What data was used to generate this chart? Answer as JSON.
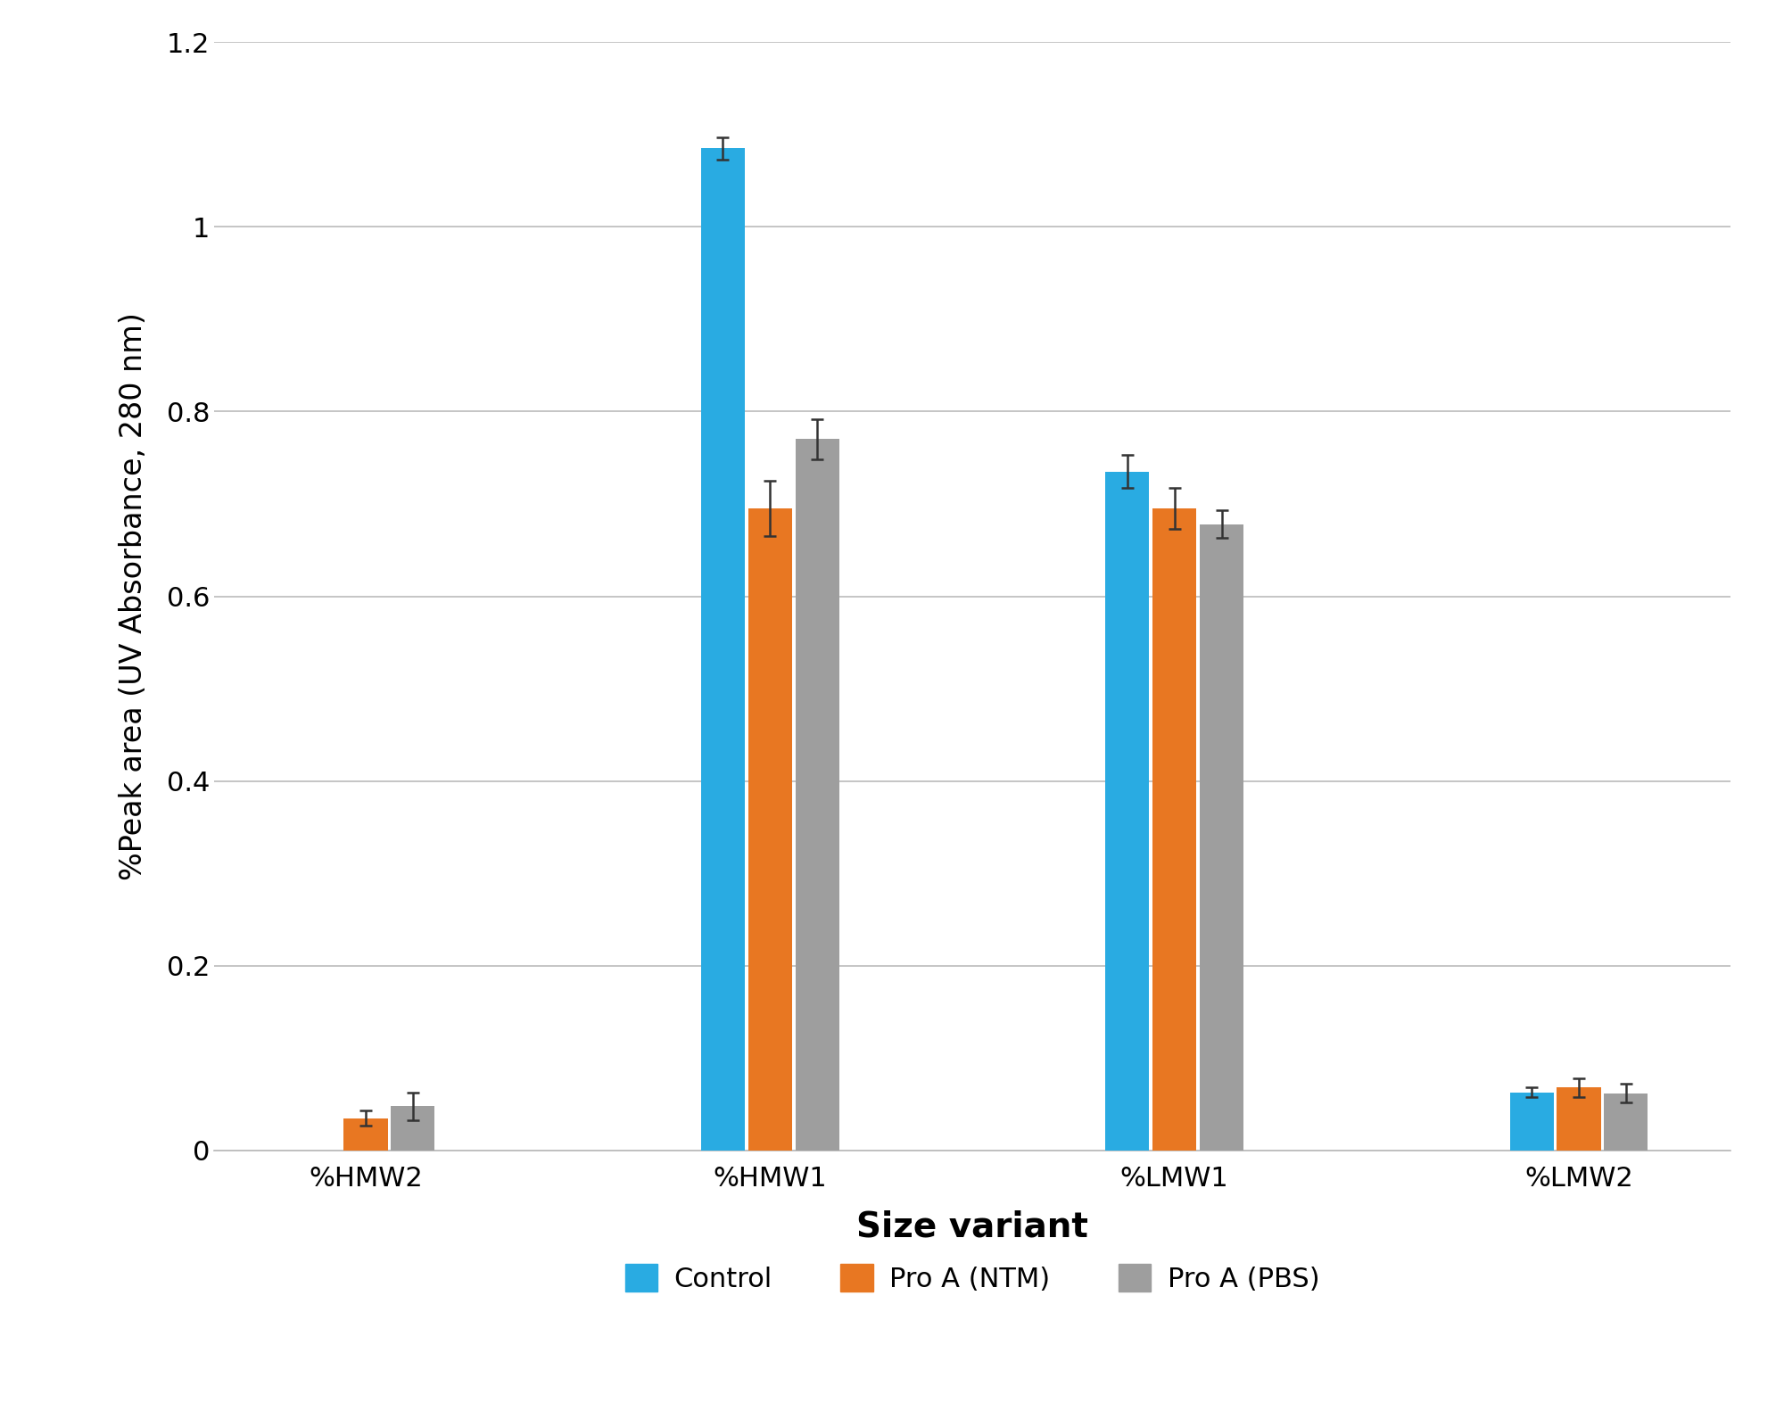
{
  "categories": [
    "%HMW2",
    "%HMW1",
    "%LMW1",
    "%LMW2"
  ],
  "series": {
    "Control": {
      "values": [
        0.0,
        1.085,
        0.735,
        0.063
      ],
      "errors": [
        0.0,
        0.012,
        0.018,
        0.005
      ],
      "color": "#29ABE2"
    },
    "Pro A (NTM)": {
      "values": [
        0.035,
        0.695,
        0.695,
        0.068
      ],
      "errors": [
        0.008,
        0.03,
        0.022,
        0.01
      ],
      "color": "#E87722"
    },
    "Pro A (PBS)": {
      "values": [
        0.048,
        0.77,
        0.678,
        0.062
      ],
      "errors": [
        0.015,
        0.022,
        0.015,
        0.01
      ],
      "color": "#9E9E9E"
    }
  },
  "xlabel": "Size variant",
  "ylabel": "%Peak area (UV Absorbance, 280 nm)",
  "ylim": [
    0,
    1.2
  ],
  "yticks": [
    0,
    0.2,
    0.4,
    0.6,
    0.8,
    1.0,
    1.2
  ],
  "bar_width": 0.13,
  "xlabel_fontsize": 28,
  "ylabel_fontsize": 24,
  "tick_fontsize": 22,
  "legend_fontsize": 22,
  "background_color": "#FFFFFF",
  "grid_color": "#BBBBBB",
  "capsize": 5,
  "group_positions": [
    0,
    1.2,
    2.4,
    3.6
  ]
}
